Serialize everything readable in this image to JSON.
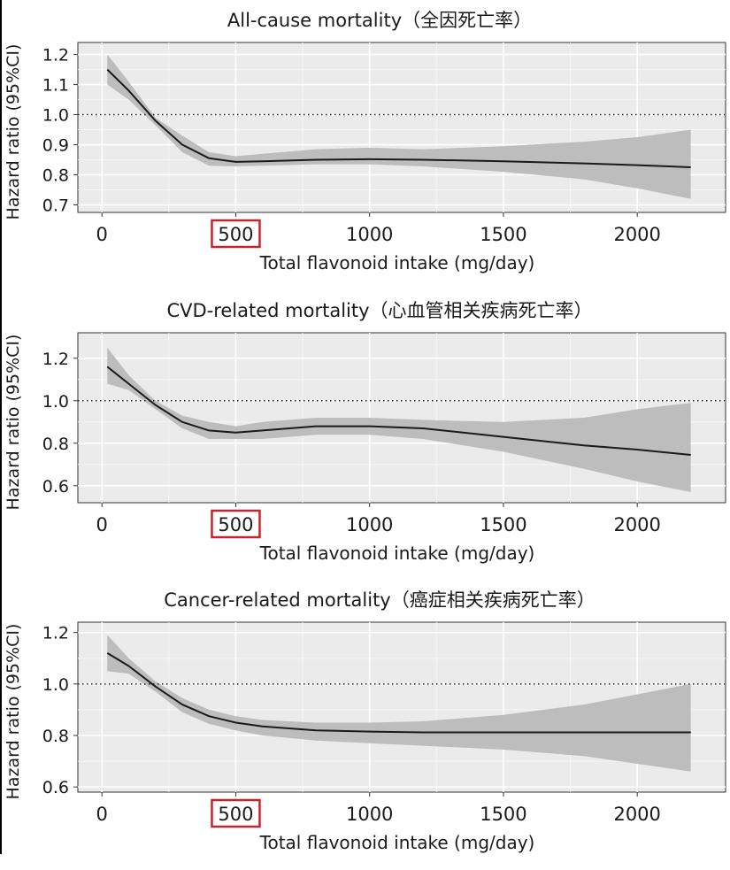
{
  "chart_data": [
    {
      "type": "line",
      "title": "All-cause mortality（全因死亡率）",
      "xlabel": "Total flavonoid intake (mg/day)",
      "ylabel": "Hazard ratio (95%CI)",
      "xlim": [
        -90,
        2330
      ],
      "ylim": [
        0.675,
        1.24
      ],
      "xticks": [
        0,
        500,
        1000,
        1500,
        2000
      ],
      "xtick_labels": [
        "0",
        "500",
        "1000",
        "1500",
        "2000"
      ],
      "yticks": [
        0.7,
        0.8,
        0.9,
        1.0,
        1.1,
        1.2
      ],
      "ytick_labels": [
        "0.7",
        "0.8",
        "0.9",
        "1.0",
        "1.1",
        "1.2"
      ],
      "reference_line": 1.0,
      "highlighted_xtick": "500",
      "grid": true,
      "series": [
        {
          "x": [
            20,
            100,
            200,
            300,
            400,
            500,
            600,
            800,
            1000,
            1200,
            1500,
            1800,
            2000,
            2200
          ],
          "y": [
            1.15,
            1.08,
            0.98,
            0.9,
            0.855,
            0.843,
            0.845,
            0.85,
            0.852,
            0.85,
            0.845,
            0.838,
            0.832,
            0.825
          ],
          "lower": [
            1.1,
            1.05,
            0.965,
            0.875,
            0.83,
            0.828,
            0.83,
            0.835,
            0.835,
            0.828,
            0.81,
            0.785,
            0.755,
            0.72
          ],
          "upper": [
            1.2,
            1.11,
            0.99,
            0.93,
            0.875,
            0.862,
            0.87,
            0.885,
            0.89,
            0.885,
            0.895,
            0.91,
            0.925,
            0.95
          ]
        }
      ]
    },
    {
      "type": "line",
      "title": "CVD-related mortality（心血管相关疾病死亡率）",
      "xlabel": "Total flavonoid intake (mg/day)",
      "ylabel": "Hazard ratio (95%CI)",
      "xlim": [
        -90,
        2330
      ],
      "ylim": [
        0.52,
        1.32
      ],
      "xticks": [
        0,
        500,
        1000,
        1500,
        2000
      ],
      "xtick_labels": [
        "0",
        "500",
        "1000",
        "1500",
        "2000"
      ],
      "yticks": [
        0.6,
        0.8,
        1.0,
        1.2
      ],
      "ytick_labels": [
        "0.6",
        "0.8",
        "1.0",
        "1.2"
      ],
      "reference_line": 1.0,
      "highlighted_xtick": "500",
      "grid": true,
      "series": [
        {
          "x": [
            20,
            100,
            200,
            300,
            400,
            500,
            600,
            800,
            1000,
            1200,
            1500,
            1800,
            2000,
            2200
          ],
          "y": [
            1.16,
            1.08,
            0.98,
            0.9,
            0.86,
            0.85,
            0.86,
            0.88,
            0.88,
            0.87,
            0.83,
            0.79,
            0.77,
            0.745
          ],
          "lower": [
            1.08,
            1.05,
            0.96,
            0.87,
            0.82,
            0.82,
            0.82,
            0.84,
            0.84,
            0.82,
            0.76,
            0.68,
            0.62,
            0.57
          ],
          "upper": [
            1.25,
            1.12,
            1.0,
            0.93,
            0.9,
            0.88,
            0.9,
            0.92,
            0.92,
            0.91,
            0.9,
            0.92,
            0.96,
            0.99
          ]
        }
      ]
    },
    {
      "type": "line",
      "title": "Cancer-related mortality（癌症相关疾病死亡率）",
      "xlabel": "Total flavonoid intake (mg/day)",
      "ylabel": "Hazard ratio (95%CI)",
      "xlim": [
        -90,
        2330
      ],
      "ylim": [
        0.58,
        1.24
      ],
      "xticks": [
        0,
        500,
        1000,
        1500,
        2000
      ],
      "xtick_labels": [
        "0",
        "500",
        "1000",
        "1500",
        "2000"
      ],
      "yticks": [
        0.6,
        0.8,
        1.0,
        1.2
      ],
      "ytick_labels": [
        "0.6",
        "0.8",
        "1.0",
        "1.2"
      ],
      "reference_line": 1.0,
      "highlighted_xtick": "500",
      "grid": true,
      "series": [
        {
          "x": [
            20,
            100,
            200,
            300,
            400,
            500,
            600,
            800,
            1000,
            1200,
            1500,
            1800,
            2000,
            2200
          ],
          "y": [
            1.12,
            1.07,
            0.99,
            0.92,
            0.875,
            0.85,
            0.835,
            0.82,
            0.815,
            0.812,
            0.812,
            0.812,
            0.812,
            0.812
          ],
          "lower": [
            1.05,
            1.04,
            0.97,
            0.89,
            0.845,
            0.82,
            0.8,
            0.78,
            0.77,
            0.76,
            0.745,
            0.72,
            0.69,
            0.66
          ],
          "upper": [
            1.19,
            1.1,
            1.01,
            0.945,
            0.9,
            0.875,
            0.86,
            0.85,
            0.85,
            0.855,
            0.88,
            0.92,
            0.96,
            1.0
          ]
        }
      ]
    }
  ],
  "colors": {
    "panel_background": "#ebebeb",
    "grid": "#ffffff",
    "ribbon": "#bdbdbd",
    "line": "#1a1a1a",
    "reference_line": "#1a1a1a",
    "highlight_box": "#c0262d"
  }
}
